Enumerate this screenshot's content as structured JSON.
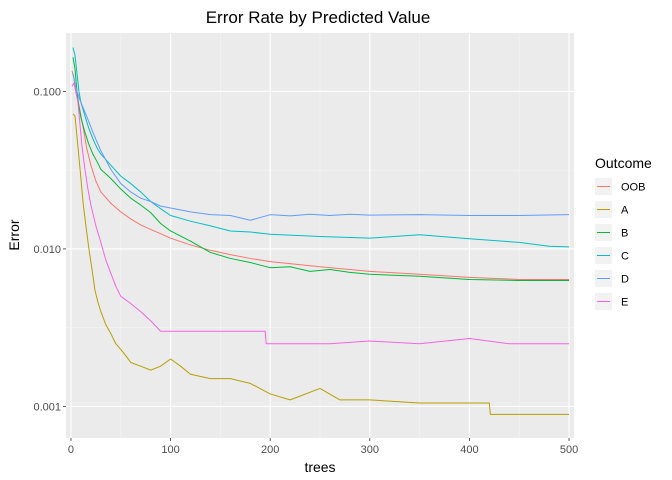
{
  "chart_data": {
    "type": "line",
    "title": "Error Rate by Predicted Value",
    "xlabel": "trees",
    "ylabel": "Error",
    "xlim": [
      -5,
      505
    ],
    "ylim": [
      0.00063,
      0.235
    ],
    "yscale": "log10",
    "x_ticks": [
      0,
      100,
      200,
      300,
      400,
      500
    ],
    "x_tick_labels": [
      "0",
      "100",
      "200",
      "300",
      "400",
      "500"
    ],
    "y_ticks": [
      0.001,
      0.01,
      0.1
    ],
    "y_tick_labels": [
      "0.001",
      "0.010",
      "0.100"
    ],
    "grid": true,
    "legend": {
      "title": "Outcome",
      "position": "right"
    },
    "series": [
      {
        "name": "OOB",
        "color": "#F8766D",
        "points": [
          [
            1,
            0.135
          ],
          [
            3,
            0.122
          ],
          [
            5,
            0.098
          ],
          [
            8,
            0.082
          ],
          [
            12,
            0.06
          ],
          [
            16,
            0.043
          ],
          [
            20,
            0.034
          ],
          [
            25,
            0.027
          ],
          [
            30,
            0.023
          ],
          [
            40,
            0.0195
          ],
          [
            50,
            0.0172
          ],
          [
            60,
            0.0155
          ],
          [
            70,
            0.0142
          ],
          [
            80,
            0.0133
          ],
          [
            90,
            0.0125
          ],
          [
            100,
            0.0117
          ],
          [
            120,
            0.0106
          ],
          [
            140,
            0.0098
          ],
          [
            160,
            0.0092
          ],
          [
            180,
            0.0087
          ],
          [
            200,
            0.0083
          ],
          [
            250,
            0.0077
          ],
          [
            300,
            0.0072
          ],
          [
            350,
            0.0069
          ],
          [
            400,
            0.0066
          ],
          [
            450,
            0.0064
          ],
          [
            500,
            0.0064
          ]
        ]
      },
      {
        "name": "A",
        "color": "#B79F00",
        "points": [
          [
            2,
            0.072
          ],
          [
            4,
            0.07
          ],
          [
            6,
            0.052
          ],
          [
            8,
            0.038
          ],
          [
            10,
            0.028
          ],
          [
            12,
            0.02
          ],
          [
            15,
            0.014
          ],
          [
            18,
            0.01
          ],
          [
            21,
            0.0075
          ],
          [
            24,
            0.0055
          ],
          [
            27,
            0.0046
          ],
          [
            30,
            0.004
          ],
          [
            35,
            0.0033
          ],
          [
            40,
            0.0029
          ],
          [
            45,
            0.0025
          ],
          [
            50,
            0.0023
          ],
          [
            55,
            0.0021
          ],
          [
            60,
            0.0019
          ],
          [
            70,
            0.0018
          ],
          [
            80,
            0.0017
          ],
          [
            90,
            0.0018
          ],
          [
            100,
            0.002
          ],
          [
            110,
            0.0018
          ],
          [
            120,
            0.0016
          ],
          [
            140,
            0.0015
          ],
          [
            160,
            0.0015
          ],
          [
            180,
            0.0014
          ],
          [
            200,
            0.0012
          ],
          [
            220,
            0.0011
          ],
          [
            250,
            0.0013
          ],
          [
            270,
            0.0011
          ],
          [
            300,
            0.0011
          ],
          [
            350,
            0.00105
          ],
          [
            400,
            0.00105
          ],
          [
            420,
            0.00105
          ],
          [
            421,
            0.00089
          ],
          [
            500,
            0.00089
          ]
        ]
      },
      {
        "name": "B",
        "color": "#00BA38",
        "points": [
          [
            2,
            0.165
          ],
          [
            4,
            0.14
          ],
          [
            6,
            0.1
          ],
          [
            8,
            0.08
          ],
          [
            10,
            0.068
          ],
          [
            14,
            0.055
          ],
          [
            18,
            0.046
          ],
          [
            22,
            0.04
          ],
          [
            26,
            0.036
          ],
          [
            30,
            0.032
          ],
          [
            40,
            0.028
          ],
          [
            50,
            0.024
          ],
          [
            60,
            0.021
          ],
          [
            70,
            0.019
          ],
          [
            80,
            0.017
          ],
          [
            90,
            0.0145
          ],
          [
            100,
            0.013
          ],
          [
            120,
            0.0112
          ],
          [
            140,
            0.0095
          ],
          [
            160,
            0.0087
          ],
          [
            180,
            0.0082
          ],
          [
            200,
            0.0076
          ],
          [
            220,
            0.0077
          ],
          [
            240,
            0.0072
          ],
          [
            260,
            0.0074
          ],
          [
            280,
            0.0071
          ],
          [
            300,
            0.0069
          ],
          [
            350,
            0.0067
          ],
          [
            400,
            0.0064
          ],
          [
            450,
            0.0063
          ],
          [
            500,
            0.0063
          ]
        ]
      },
      {
        "name": "C",
        "color": "#00BFC4",
        "points": [
          [
            2,
            0.19
          ],
          [
            4,
            0.17
          ],
          [
            6,
            0.13
          ],
          [
            8,
            0.1
          ],
          [
            10,
            0.085
          ],
          [
            14,
            0.07
          ],
          [
            18,
            0.058
          ],
          [
            22,
            0.05
          ],
          [
            26,
            0.044
          ],
          [
            30,
            0.04
          ],
          [
            40,
            0.034
          ],
          [
            50,
            0.029
          ],
          [
            60,
            0.026
          ],
          [
            70,
            0.023
          ],
          [
            80,
            0.02
          ],
          [
            90,
            0.018
          ],
          [
            100,
            0.0163
          ],
          [
            120,
            0.015
          ],
          [
            140,
            0.014
          ],
          [
            160,
            0.013
          ],
          [
            180,
            0.0128
          ],
          [
            200,
            0.0124
          ],
          [
            250,
            0.012
          ],
          [
            300,
            0.0117
          ],
          [
            350,
            0.0123
          ],
          [
            400,
            0.0116
          ],
          [
            450,
            0.011
          ],
          [
            480,
            0.0104
          ],
          [
            500,
            0.0103
          ]
        ]
      },
      {
        "name": "D",
        "color": "#619CFF",
        "points": [
          [
            2,
            0.13
          ],
          [
            4,
            0.112
          ],
          [
            6,
            0.1
          ],
          [
            8,
            0.092
          ],
          [
            10,
            0.085
          ],
          [
            14,
            0.074
          ],
          [
            18,
            0.064
          ],
          [
            22,
            0.055
          ],
          [
            26,
            0.048
          ],
          [
            30,
            0.042
          ],
          [
            40,
            0.032
          ],
          [
            50,
            0.026
          ],
          [
            60,
            0.023
          ],
          [
            70,
            0.021
          ],
          [
            80,
            0.02
          ],
          [
            90,
            0.0187
          ],
          [
            100,
            0.0182
          ],
          [
            120,
            0.0172
          ],
          [
            140,
            0.0165
          ],
          [
            160,
            0.0163
          ],
          [
            180,
            0.0152
          ],
          [
            200,
            0.0165
          ],
          [
            220,
            0.0162
          ],
          [
            240,
            0.0166
          ],
          [
            260,
            0.0163
          ],
          [
            280,
            0.0166
          ],
          [
            300,
            0.0164
          ],
          [
            350,
            0.0165
          ],
          [
            400,
            0.0163
          ],
          [
            450,
            0.0163
          ],
          [
            500,
            0.0165
          ]
        ]
      },
      {
        "name": "E",
        "color": "#F564E3",
        "points": [
          [
            1,
            0.108
          ],
          [
            3,
            0.113
          ],
          [
            5,
            0.1
          ],
          [
            7,
            0.085
          ],
          [
            9,
            0.062
          ],
          [
            11,
            0.045
          ],
          [
            14,
            0.032
          ],
          [
            17,
            0.024
          ],
          [
            20,
            0.019
          ],
          [
            25,
            0.014
          ],
          [
            30,
            0.011
          ],
          [
            35,
            0.0085
          ],
          [
            40,
            0.007
          ],
          [
            45,
            0.0058
          ],
          [
            50,
            0.005
          ],
          [
            60,
            0.0045
          ],
          [
            70,
            0.004
          ],
          [
            80,
            0.0035
          ],
          [
            90,
            0.003
          ],
          [
            100,
            0.003
          ],
          [
            120,
            0.003
          ],
          [
            140,
            0.003
          ],
          [
            160,
            0.003
          ],
          [
            180,
            0.003
          ],
          [
            195,
            0.003
          ],
          [
            196,
            0.0025
          ],
          [
            260,
            0.0025
          ],
          [
            300,
            0.0026
          ],
          [
            350,
            0.0025
          ],
          [
            400,
            0.0027
          ],
          [
            440,
            0.0025
          ],
          [
            500,
            0.0025
          ]
        ]
      }
    ]
  }
}
